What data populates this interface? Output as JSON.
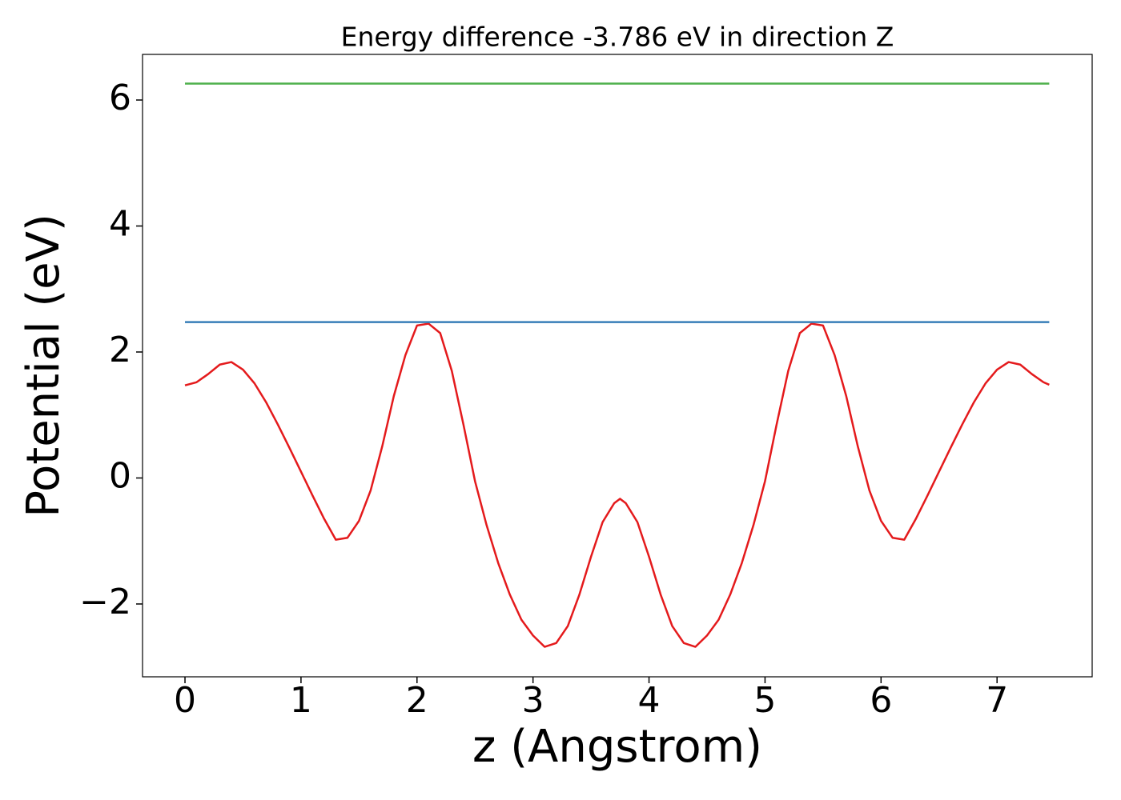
{
  "chart_data": {
    "type": "line",
    "title": "Energy difference -3.786 eV in direction Z",
    "xlabel": "z (Angstrom)",
    "ylabel": "Potential (eV)",
    "xlim": [
      -0.366,
      7.82
    ],
    "ylim": [
      -3.156,
      6.724
    ],
    "xticks": [
      0,
      1,
      2,
      3,
      4,
      5,
      6,
      7
    ],
    "yticks": [
      {
        "value": -2,
        "label": "−2"
      },
      0,
      2,
      4,
      6
    ],
    "grid": false,
    "series": [
      {
        "color": "#e41a1c",
        "x": [
          0,
          0.1,
          0.2,
          0.3,
          0.4,
          0.5,
          0.6,
          0.7,
          0.8,
          0.9,
          1.0,
          1.1,
          1.2,
          1.3,
          1.4,
          1.5,
          1.6,
          1.7,
          1.8,
          1.9,
          2.0,
          2.1,
          2.2,
          2.3,
          2.4,
          2.5,
          2.6,
          2.7,
          2.8,
          2.9,
          3.0,
          3.1,
          3.2,
          3.3,
          3.4,
          3.5,
          3.6,
          3.7,
          3.75,
          3.8,
          3.9,
          4.0,
          4.1,
          4.2,
          4.3,
          4.4,
          4.5,
          4.6,
          4.7,
          4.8,
          4.9,
          5.0,
          5.1,
          5.2,
          5.3,
          5.4,
          5.5,
          5.6,
          5.7,
          5.8,
          5.9,
          6.0,
          6.1,
          6.2,
          6.3,
          6.4,
          6.5,
          6.6,
          6.7,
          6.8,
          6.9,
          7.0,
          7.1,
          7.2,
          7.3,
          7.4,
          7.45
        ],
        "values": [
          1.47,
          1.52,
          1.65,
          1.8,
          1.84,
          1.72,
          1.5,
          1.2,
          0.85,
          0.48,
          0.1,
          -0.28,
          -0.65,
          -0.98,
          -0.95,
          -0.68,
          -0.2,
          0.5,
          1.3,
          1.95,
          2.42,
          2.45,
          2.3,
          1.7,
          0.85,
          -0.05,
          -0.75,
          -1.35,
          -1.85,
          -2.25,
          -2.5,
          -2.68,
          -2.62,
          -2.35,
          -1.85,
          -1.25,
          -0.7,
          -0.4,
          -0.33,
          -0.4,
          -0.7,
          -1.25,
          -1.85,
          -2.35,
          -2.62,
          -2.68,
          -2.5,
          -2.25,
          -1.85,
          -1.35,
          -0.75,
          -0.05,
          0.85,
          1.7,
          2.3,
          2.45,
          2.42,
          1.95,
          1.3,
          0.5,
          -0.2,
          -0.68,
          -0.95,
          -0.98,
          -0.65,
          -0.28,
          0.1,
          0.48,
          0.85,
          1.2,
          1.5,
          1.72,
          1.84,
          1.8,
          1.65,
          1.52,
          1.48
        ]
      },
      {
        "color": "#377eb8",
        "x": [
          0,
          7.45
        ],
        "values": [
          2.474,
          2.474
        ]
      },
      {
        "color": "#4daf4a",
        "x": [
          0,
          7.45
        ],
        "values": [
          6.26,
          6.26
        ]
      }
    ]
  }
}
